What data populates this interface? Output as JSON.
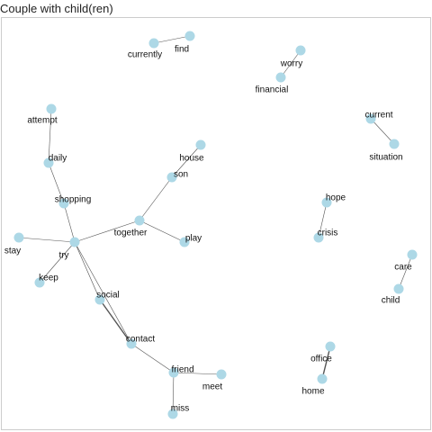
{
  "title": "Couple with child(ren)",
  "colors": {
    "node": "#add8e6",
    "edge": "#555555",
    "panel_border": "#cccccc",
    "label": "#111111"
  },
  "nodes": [
    {
      "id": "find",
      "label": "find"
    },
    {
      "id": "currently",
      "label": "currently"
    },
    {
      "id": "worry",
      "label": "worry"
    },
    {
      "id": "financial",
      "label": "financial"
    },
    {
      "id": "attempt",
      "label": "attempt"
    },
    {
      "id": "daily",
      "label": "daily"
    },
    {
      "id": "shopping",
      "label": "shopping"
    },
    {
      "id": "house",
      "label": "house"
    },
    {
      "id": "son",
      "label": "son"
    },
    {
      "id": "together",
      "label": "together"
    },
    {
      "id": "play",
      "label": "play"
    },
    {
      "id": "stay",
      "label": "stay"
    },
    {
      "id": "try",
      "label": "try"
    },
    {
      "id": "keep",
      "label": "keep"
    },
    {
      "id": "social",
      "label": "social"
    },
    {
      "id": "contact",
      "label": "contact"
    },
    {
      "id": "friend",
      "label": "friend"
    },
    {
      "id": "meet",
      "label": "meet"
    },
    {
      "id": "miss",
      "label": "miss"
    },
    {
      "id": "current",
      "label": "current"
    },
    {
      "id": "situation",
      "label": "situation"
    },
    {
      "id": "hope",
      "label": "hope"
    },
    {
      "id": "crisis",
      "label": "crisis"
    },
    {
      "id": "care",
      "label": "care"
    },
    {
      "id": "child",
      "label": "child"
    },
    {
      "id": "office",
      "label": "office"
    },
    {
      "id": "home",
      "label": "home"
    }
  ],
  "edges": [
    {
      "source": "find",
      "target": "currently",
      "weight": 1
    },
    {
      "source": "worry",
      "target": "financial",
      "weight": 1
    },
    {
      "source": "attempt",
      "target": "daily",
      "weight": 1
    },
    {
      "source": "daily",
      "target": "shopping",
      "weight": 1
    },
    {
      "source": "shopping",
      "target": "try",
      "weight": 1
    },
    {
      "source": "house",
      "target": "son",
      "weight": 1
    },
    {
      "source": "son",
      "target": "together",
      "weight": 1
    },
    {
      "source": "together",
      "target": "play",
      "weight": 1
    },
    {
      "source": "together",
      "target": "try",
      "weight": 1
    },
    {
      "source": "stay",
      "target": "try",
      "weight": 1
    },
    {
      "source": "try",
      "target": "keep",
      "weight": 1
    },
    {
      "source": "try",
      "target": "social",
      "weight": 1
    },
    {
      "source": "try",
      "target": "contact",
      "weight": 1
    },
    {
      "source": "social",
      "target": "contact",
      "weight": 2
    },
    {
      "source": "contact",
      "target": "friend",
      "weight": 1
    },
    {
      "source": "friend",
      "target": "meet",
      "weight": 1
    },
    {
      "source": "friend",
      "target": "miss",
      "weight": 1
    },
    {
      "source": "current",
      "target": "situation",
      "weight": 1
    },
    {
      "source": "hope",
      "target": "crisis",
      "weight": 1
    },
    {
      "source": "care",
      "target": "child",
      "weight": 1
    },
    {
      "source": "office",
      "target": "home",
      "weight": 2
    }
  ]
}
